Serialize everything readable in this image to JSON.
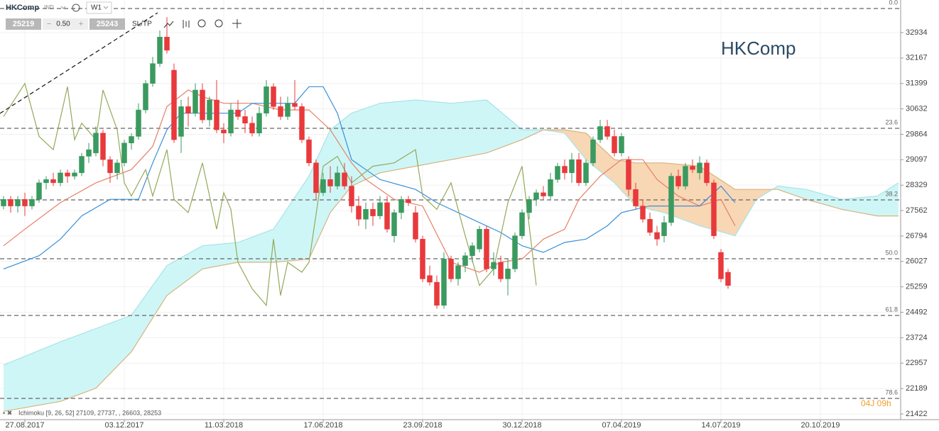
{
  "toolbar": {
    "symbol": "HKComp",
    "market": "IND",
    "timeframe": "W1",
    "bid": "25219",
    "spread": "0.50",
    "ask": "25243",
    "sltp": "SL/TP"
  },
  "chart_data": {
    "type": "candlestick",
    "watermark": "HKComp",
    "legend": "Ichimoku [9, 26, 52] 27109, 27737, , 26603, 28253",
    "countdown": "04J 09h",
    "colors": {
      "up": "#3a9a5f",
      "down": "#e8393c",
      "cloud_up": "#cff6f7",
      "cloud_down": "#f8d7b5"
    },
    "xlim": [
      -3.5,
      123.3
    ],
    "xticks": [
      {
        "value": 0,
        "label": "27.08.2017"
      },
      {
        "value": 14,
        "label": "03.12.2017"
      },
      {
        "value": 28,
        "label": "11.03.2018"
      },
      {
        "value": 42,
        "label": "17.06.2018"
      },
      {
        "value": 56,
        "label": "23.09.2018"
      },
      {
        "value": 70,
        "label": "30.12.2018"
      },
      {
        "value": 84,
        "label": "07.04.2019"
      },
      {
        "value": 98,
        "label": "14.07.2019"
      },
      {
        "value": 112,
        "label": "20.10.2019"
      }
    ],
    "ylim": [
      21250,
      33918
    ],
    "yticks": [
      32934,
      32167,
      31399,
      30632,
      29864,
      29097,
      28329,
      27562,
      26794,
      26027,
      25259,
      24492,
      23724,
      22957,
      22189,
      21422
    ],
    "grid": true,
    "levels": [
      {
        "value": 33662,
        "label": "0.0"
      },
      {
        "value": 30045,
        "label": "23.6"
      },
      {
        "value": 27884,
        "label": "38.2"
      },
      {
        "value": 26107,
        "label": "50.0"
      },
      {
        "value": 24395,
        "label": "61.8"
      },
      {
        "value": 21892,
        "label": "78.6"
      }
    ],
    "x": [
      -3,
      -2,
      -1,
      0,
      1,
      2,
      3,
      4,
      5,
      6,
      7,
      8,
      9,
      10,
      11,
      12,
      13,
      14,
      15,
      16,
      17,
      18,
      19,
      20,
      21,
      22,
      23,
      24,
      25,
      26,
      27,
      28,
      29,
      30,
      31,
      32,
      33,
      34,
      35,
      36,
      37,
      38,
      39,
      40,
      41,
      42,
      43,
      44,
      45,
      46,
      47,
      48,
      49,
      50,
      51,
      52,
      53,
      54,
      55,
      56,
      57,
      58,
      59,
      60,
      61,
      62,
      63,
      64,
      65,
      66,
      67,
      68,
      69,
      70,
      71,
      72,
      73,
      74,
      75,
      76,
      77,
      78,
      79,
      80,
      81,
      82,
      83,
      84,
      85,
      86,
      87,
      88,
      89,
      90,
      91,
      92,
      93,
      94,
      95,
      96,
      97,
      98,
      99
    ],
    "ohlc": [
      [
        27700,
        28000,
        27600,
        27900
      ],
      [
        27900,
        28000,
        27500,
        27700
      ],
      [
        27700,
        28000,
        27500,
        27900
      ],
      [
        27900,
        28100,
        27400,
        27700
      ],
      [
        27700,
        28000,
        27600,
        27900
      ],
      [
        27900,
        28500,
        27800,
        28400
      ],
      [
        28400,
        28600,
        28200,
        28500
      ],
      [
        28500,
        28700,
        28300,
        28400
      ],
      [
        28400,
        28800,
        28300,
        28700
      ],
      [
        28700,
        28800,
        28400,
        28600
      ],
      [
        28600,
        28800,
        28500,
        28700
      ],
      [
        28700,
        29300,
        28600,
        29200
      ],
      [
        29200,
        29600,
        29000,
        29400
      ],
      [
        29300,
        30100,
        29200,
        29900
      ],
      [
        29900,
        30000,
        28900,
        29100
      ],
      [
        29100,
        29200,
        28400,
        28700
      ],
      [
        28700,
        29100,
        28500,
        29000
      ],
      [
        29000,
        29700,
        28900,
        29600
      ],
      [
        29600,
        29900,
        29400,
        29800
      ],
      [
        29800,
        30800,
        29700,
        30600
      ],
      [
        30600,
        31500,
        30500,
        31400
      ],
      [
        31400,
        32200,
        31300,
        32000
      ],
      [
        32000,
        33000,
        31900,
        32800
      ],
      [
        32800,
        33400,
        32300,
        32400
      ],
      [
        31800,
        32000,
        29600,
        29700
      ],
      [
        29800,
        30900,
        29300,
        30700
      ],
      [
        30700,
        31000,
        30100,
        30500
      ],
      [
        30500,
        31400,
        30400,
        31200
      ],
      [
        31200,
        31400,
        30200,
        30300
      ],
      [
        30300,
        31000,
        30100,
        30900
      ],
      [
        30900,
        31500,
        29900,
        30000
      ],
      [
        30000,
        30200,
        29600,
        29900
      ],
      [
        29900,
        30800,
        29800,
        30600
      ],
      [
        30600,
        30900,
        30300,
        30400
      ],
      [
        30400,
        30600,
        29900,
        30200
      ],
      [
        30200,
        30400,
        29800,
        29900
      ],
      [
        29900,
        30700,
        29800,
        30500
      ],
      [
        30500,
        31500,
        30400,
        31300
      ],
      [
        31300,
        31400,
        30600,
        30700
      ],
      [
        30700,
        31000,
        30300,
        30400
      ],
      [
        30400,
        31000,
        30300,
        30800
      ],
      [
        30800,
        31500,
        30600,
        30700
      ],
      [
        30700,
        30800,
        29600,
        29700
      ],
      [
        29700,
        29800,
        28900,
        29000
      ],
      [
        29000,
        29100,
        27900,
        28100
      ],
      [
        28100,
        28700,
        28000,
        28500
      ],
      [
        28500,
        28900,
        28100,
        28300
      ],
      [
        28300,
        28900,
        28200,
        28700
      ],
      [
        28700,
        29000,
        28200,
        28300
      ],
      [
        28300,
        28600,
        27500,
        27700
      ],
      [
        27700,
        28000,
        27100,
        27300
      ],
      [
        27300,
        27800,
        27000,
        27600
      ],
      [
        27600,
        27800,
        27100,
        27400
      ],
      [
        27400,
        28000,
        27300,
        27800
      ],
      [
        27800,
        28000,
        26900,
        27000
      ],
      [
        26800,
        27600,
        26600,
        27500
      ],
      [
        27500,
        28000,
        27300,
        27900
      ],
      [
        27900,
        28000,
        27700,
        27800
      ],
      [
        27500,
        27700,
        26600,
        26700
      ],
      [
        26700,
        26800,
        25400,
        25500
      ],
      [
        25600,
        25900,
        25300,
        25400
      ],
      [
        25400,
        25600,
        24600,
        24700
      ],
      [
        24700,
        26300,
        24600,
        26100
      ],
      [
        26100,
        26200,
        25400,
        25500
      ],
      [
        25500,
        26000,
        25300,
        25900
      ],
      [
        25900,
        26300,
        25700,
        26200
      ],
      [
        26200,
        26600,
        26000,
        26500
      ],
      [
        26400,
        27100,
        26300,
        27000
      ],
      [
        27000,
        27100,
        25700,
        25800
      ],
      [
        25800,
        26300,
        25600,
        26000
      ],
      [
        26000,
        26200,
        25400,
        25500
      ],
      [
        25500,
        26100,
        25000,
        25800
      ],
      [
        25800,
        26900,
        25700,
        26800
      ],
      [
        26800,
        27600,
        26700,
        27500
      ],
      [
        27500,
        28000,
        27300,
        27900
      ],
      [
        27900,
        28200,
        27700,
        28100
      ],
      [
        28100,
        28300,
        27900,
        28000
      ],
      [
        28000,
        28700,
        27900,
        28500
      ],
      [
        28500,
        29000,
        28400,
        28900
      ],
      [
        28900,
        29100,
        28500,
        28700
      ],
      [
        28700,
        29300,
        28400,
        29100
      ],
      [
        29100,
        29300,
        28300,
        28400
      ],
      [
        28400,
        29100,
        28300,
        29000
      ],
      [
        29000,
        29800,
        28900,
        29700
      ],
      [
        29700,
        30300,
        29600,
        30100
      ],
      [
        30100,
        30300,
        29700,
        29800
      ],
      [
        29800,
        30000,
        29200,
        29300
      ],
      [
        29300,
        29900,
        29200,
        29800
      ],
      [
        29100,
        29200,
        28000,
        28200
      ],
      [
        28200,
        28400,
        27600,
        27700
      ],
      [
        27700,
        27900,
        27200,
        27300
      ],
      [
        27300,
        27500,
        26800,
        26900
      ],
      [
        26900,
        27100,
        26500,
        26700
      ],
      [
        26800,
        27400,
        26600,
        27200
      ],
      [
        27200,
        28700,
        27100,
        28600
      ],
      [
        28600,
        28800,
        28200,
        28300
      ],
      [
        28300,
        29000,
        28200,
        28900
      ],
      [
        28900,
        29100,
        28700,
        28800
      ],
      [
        28700,
        29200,
        28500,
        29000
      ],
      [
        29000,
        29100,
        28300,
        28400
      ],
      [
        28400,
        28500,
        26700,
        26800
      ],
      [
        26300,
        26400,
        25400,
        25500
      ],
      [
        25700,
        25800,
        25200,
        25300
      ]
    ],
    "series": [
      {
        "color": "#e58068",
        "x": [
          -3,
          0,
          5,
          10,
          15,
          18,
          20,
          23,
          25,
          28,
          32,
          36,
          40,
          43,
          46,
          48,
          52,
          56,
          60,
          64,
          67,
          70,
          73,
          76,
          78,
          81,
          84,
          87,
          89,
          92,
          95,
          98,
          100
        ],
        "values": [
          26500,
          27000,
          27800,
          28400,
          28800,
          29500,
          30700,
          31200,
          31000,
          30800,
          30800,
          30600,
          30600,
          30000,
          29000,
          28500,
          27900,
          27700,
          26000,
          25700,
          26000,
          26100,
          26700,
          27000,
          27900,
          28600,
          29100,
          29100,
          28500,
          28000,
          27700,
          27900,
          27100
        ]
      },
      {
        "color": "#3a8fd8",
        "x": [
          -3,
          2,
          5,
          8,
          12,
          16,
          18,
          20,
          22,
          27,
          30,
          32,
          38,
          40,
          42,
          44,
          46,
          50,
          55,
          58,
          63,
          67,
          70,
          73,
          76,
          79,
          82,
          84,
          88,
          92,
          95,
          98,
          100
        ],
        "values": [
          25800,
          26200,
          26700,
          27400,
          27900,
          27900,
          29000,
          30000,
          30500,
          30500,
          30500,
          30800,
          30800,
          31300,
          31300,
          30500,
          29100,
          28500,
          28200,
          27800,
          27300,
          26900,
          26500,
          26300,
          26600,
          26700,
          27100,
          27500,
          27700,
          27700,
          27700,
          28300,
          27800
        ]
      },
      {
        "color": "#93a95a",
        "x": [
          -3,
          0,
          2,
          4,
          6,
          7,
          8,
          10,
          11,
          13,
          14,
          15,
          17,
          18,
          20,
          21,
          23,
          25,
          27,
          28,
          29,
          30,
          32,
          34,
          35,
          36,
          37,
          39,
          40,
          42,
          44,
          46,
          49,
          52,
          55,
          56,
          58,
          60,
          62,
          64,
          66,
          68,
          70,
          72
        ],
        "values": [
          30400,
          31400,
          29800,
          29400,
          31300,
          29700,
          30200,
          29700,
          31200,
          30000,
          28400,
          28000,
          28800,
          28000,
          29400,
          27900,
          27500,
          29000,
          27000,
          28100,
          27600,
          26000,
          25200,
          24700,
          26700,
          25000,
          26000,
          25700,
          26000,
          28900,
          29200,
          28400,
          28900,
          29000,
          29400,
          28000,
          27600,
          28400,
          26800,
          25300,
          25800,
          27800,
          28900,
          25300
        ]
      }
    ],
    "cloud": {
      "x": [
        -3,
        5,
        10,
        15,
        20,
        25,
        30,
        35,
        40,
        43,
        46,
        50,
        55,
        60,
        65,
        70,
        73,
        76,
        79,
        83,
        86,
        90,
        95,
        100,
        103,
        106,
        110,
        115,
        120,
        123
      ],
      "span_a": [
        22900,
        23600,
        24000,
        24400,
        25900,
        26500,
        26600,
        27000,
        28600,
        30000,
        30500,
        30800,
        30900,
        30800,
        30900,
        30000,
        30000,
        29900,
        29100,
        28400,
        27700,
        27500,
        27100,
        26800,
        27900,
        28300,
        28200,
        27900,
        28000,
        28400
      ],
      "span_b": [
        21500,
        21800,
        22200,
        23300,
        25000,
        25800,
        26000,
        26000,
        26100,
        27500,
        28300,
        28700,
        28900,
        29100,
        29300,
        29700,
        30000,
        30000,
        29900,
        29100,
        29000,
        29000,
        28900,
        28200,
        28200,
        28200,
        27900,
        27600,
        27400,
        27400
      ],
      "color_a": "#a6e3e8",
      "color_b": "#d6b47e"
    }
  }
}
